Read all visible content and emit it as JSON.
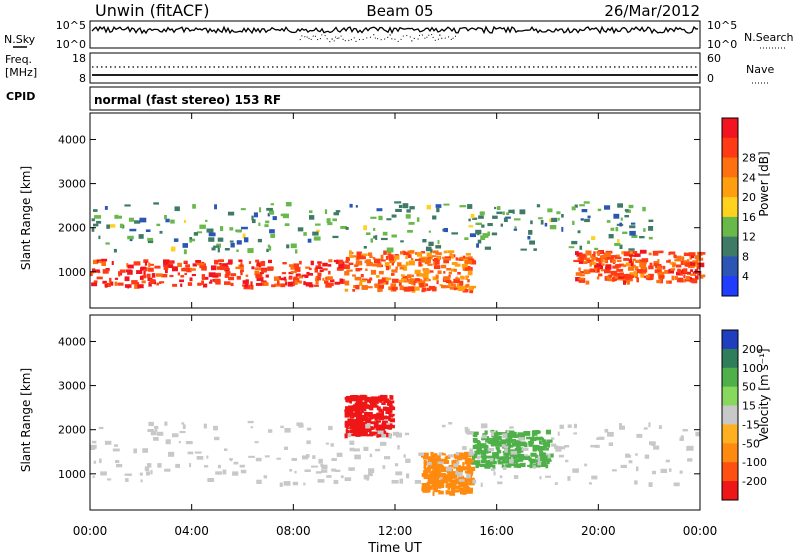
{
  "header": {
    "station": "Unwin (fitACF)",
    "beam": "Beam 05",
    "date": "26/Mar/2012"
  },
  "nsky_panel": {
    "left_label": "N.Sky",
    "left_ticks": [
      "10^5",
      "10^0"
    ],
    "right_ticks": [
      "10^5",
      "10^0"
    ],
    "right_label": "N.Search"
  },
  "freq_panel": {
    "left_label_1": "Freq.",
    "left_label_2": "[MHz]",
    "left_ticks": [
      "18",
      "8"
    ],
    "right_ticks": [
      "60",
      "0"
    ],
    "right_label": "Nave"
  },
  "cpid": {
    "label": "CPID",
    "value": "normal (fast stereo) 153 RF"
  },
  "chart_data": [
    {
      "type": "heatmap",
      "quantity": "Power",
      "ylabel": "Slant Range [km]",
      "ylim": [
        180,
        4600
      ],
      "yticks": [
        "1000",
        "2000",
        "3000",
        "4000"
      ],
      "xlim": [
        0,
        24
      ],
      "colorbar": {
        "label": "Power [dB]",
        "ticks": [
          "4",
          "8",
          "12",
          "16",
          "20",
          "24",
          "28"
        ],
        "colors": [
          "#1f3cff",
          "#2c55b5",
          "#3f7a66",
          "#69b84a",
          "#ffd21f",
          "#ff9f10",
          "#ff7010",
          "#ff3a14",
          "#f2151f"
        ]
      },
      "features": [
        {
          "time": [
            0.0,
            10.0
          ],
          "range": [
            700,
            1300
          ],
          "level": 26
        },
        {
          "time": [
            10.0,
            15.0
          ],
          "range": [
            600,
            1500
          ],
          "level": 22
        },
        {
          "time": [
            19.0,
            24.0
          ],
          "range": [
            800,
            1500
          ],
          "level": 24
        },
        {
          "time": [
            0.0,
            22.0
          ],
          "range": [
            1500,
            2600
          ],
          "level": 10
        }
      ]
    },
    {
      "type": "heatmap",
      "quantity": "Velocity",
      "ylabel": "Slant Range [km]",
      "ylim": [
        180,
        4600
      ],
      "yticks": [
        "1000",
        "2000",
        "3000",
        "4000"
      ],
      "xlim": [
        0,
        24
      ],
      "xlabel": "Time UT",
      "xticks": [
        "00:00",
        "04:00",
        "08:00",
        "12:00",
        "16:00",
        "20:00",
        "00:00"
      ],
      "colorbar": {
        "label": "Velocity [m s⁻¹]",
        "ticks": [
          "200",
          "100",
          "50",
          "15",
          "-15",
          "-50",
          "-100",
          "-200"
        ],
        "colors": [
          "#1f3fbf",
          "#2f7d5a",
          "#4fb04a",
          "#88d860",
          "#c8c8c8",
          "#ffb020",
          "#ff8a10",
          "#ff5014",
          "#ee1616"
        ]
      },
      "features": [
        {
          "time": [
            10.0,
            11.8
          ],
          "range": [
            1900,
            2800
          ],
          "level": -200
        },
        {
          "time": [
            13.0,
            15.0
          ],
          "range": [
            600,
            1500
          ],
          "level": -50
        },
        {
          "time": [
            15.0,
            18.0
          ],
          "range": [
            1200,
            2000
          ],
          "level": 50
        },
        {
          "time": [
            0.0,
            24.0
          ],
          "range": [
            800,
            2200
          ],
          "level": 0
        }
      ]
    }
  ]
}
